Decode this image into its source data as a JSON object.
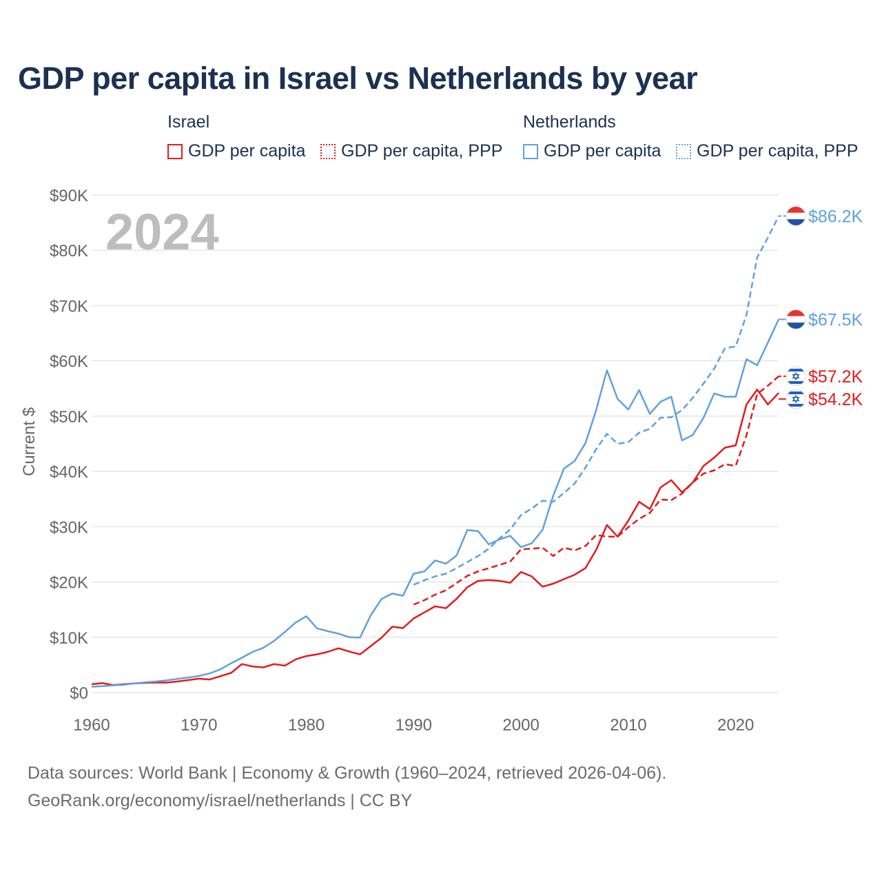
{
  "title": "GDP per capita in Israel vs Netherlands by year",
  "legend": {
    "groups": [
      {
        "name": "Israel",
        "items": [
          {
            "label": "GDP per capita"
          },
          {
            "label": "GDP per capita, PPP"
          }
        ]
      },
      {
        "name": "Netherlands",
        "items": [
          {
            "label": "GDP per capita"
          },
          {
            "label": "GDP per capita, PPP"
          }
        ]
      }
    ]
  },
  "year_label": "2024",
  "footer": {
    "line1": "Data sources: World Bank | Economy & Growth (1960–2024, retrieved 2026-04-06).",
    "line2": "GeoRank.org/economy/israel/netherlands | CC BY"
  },
  "colors": {
    "israel": "#e31a1c",
    "netherlands": "#5ea1e0",
    "grid": "#e6e6e6",
    "axis_text": "#666666",
    "year": "#bdbdbd"
  },
  "chart_data": {
    "type": "line",
    "ylabel": "Current $",
    "xlim": [
      1960,
      2024
    ],
    "ylim": [
      0,
      90000
    ],
    "x_ticks": [
      1960,
      1970,
      1980,
      1990,
      2000,
      2010,
      2020
    ],
    "y_ticks": [
      0,
      10000,
      20000,
      30000,
      40000,
      50000,
      60000,
      70000,
      80000,
      90000
    ],
    "y_tick_labels": [
      "$0",
      "$10K",
      "$20K",
      "$30K",
      "$40K",
      "$50K",
      "$60K",
      "$70K",
      "$80K",
      "$90K"
    ],
    "series": [
      {
        "name": "Israel GDP per capita",
        "country": "israel",
        "dash": false,
        "start": 1960,
        "values": [
          1500,
          1700,
          1350,
          1500,
          1650,
          1750,
          1800,
          1800,
          2000,
          2250,
          2500,
          2350,
          2950,
          3550,
          5150,
          4700,
          4550,
          5150,
          4850,
          6000,
          6600,
          6900,
          7350,
          8000,
          7400,
          6900,
          8400,
          9900,
          11900,
          11650,
          13400,
          14500,
          15600,
          15250,
          16950,
          19050,
          20200,
          20350,
          20200,
          19850,
          21800,
          21000,
          19150,
          19700,
          20500,
          21300,
          22500,
          25800,
          30300,
          28200,
          31100,
          34500,
          33200,
          37100,
          38400,
          36200,
          38000,
          41000,
          42500,
          44300,
          44700,
          52100,
          54800,
          52100,
          54200
        ],
        "end_label": "$54.2K"
      },
      {
        "name": "Israel GDP per capita, PPP",
        "country": "israel",
        "dash": true,
        "start": 1990,
        "values": [
          15900,
          16700,
          17700,
          18500,
          19800,
          21100,
          21900,
          22500,
          23100,
          23700,
          25900,
          26000,
          26200,
          24700,
          26200,
          25700,
          26500,
          28500,
          28200,
          28200,
          29900,
          31400,
          32500,
          34900,
          34800,
          36000,
          38000,
          39600,
          40200,
          41300,
          41000,
          46500,
          54000,
          55500,
          57200
        ],
        "end_label": "$57.2K"
      },
      {
        "name": "Netherlands GDP per capita",
        "country": "netherlands",
        "dash": false,
        "start": 1960,
        "values": [
          1050,
          1150,
          1300,
          1400,
          1650,
          1850,
          2000,
          2200,
          2450,
          2700,
          3000,
          3450,
          4200,
          5300,
          6300,
          7350,
          8100,
          9350,
          10950,
          12650,
          13800,
          11600,
          11100,
          10650,
          10000,
          9950,
          13950,
          16900,
          17900,
          17500,
          21500,
          21900,
          23900,
          23300,
          24800,
          29400,
          29200,
          26800,
          27700,
          28350,
          26300,
          27000,
          29400,
          35600,
          40500,
          41900,
          45100,
          51100,
          58300,
          53100,
          51200,
          54700,
          50400,
          52600,
          53500,
          45600,
          46600,
          49700,
          54100,
          53500,
          53500,
          60300,
          59200,
          63300,
          67500
        ],
        "end_label": "$67.5K"
      },
      {
        "name": "Netherlands GDP per capita, PPP",
        "country": "netherlands",
        "dash": true,
        "start": 1990,
        "values": [
          19500,
          20300,
          21000,
          21500,
          22500,
          23600,
          24700,
          26000,
          27900,
          29500,
          32100,
          33300,
          34700,
          34500,
          36100,
          37800,
          40700,
          44000,
          46800,
          45000,
          45300,
          47000,
          47700,
          49700,
          49800,
          51100,
          53300,
          55900,
          58600,
          62300,
          62600,
          68300,
          78700,
          82300,
          86200
        ],
        "end_label": "$86.2K"
      }
    ]
  }
}
